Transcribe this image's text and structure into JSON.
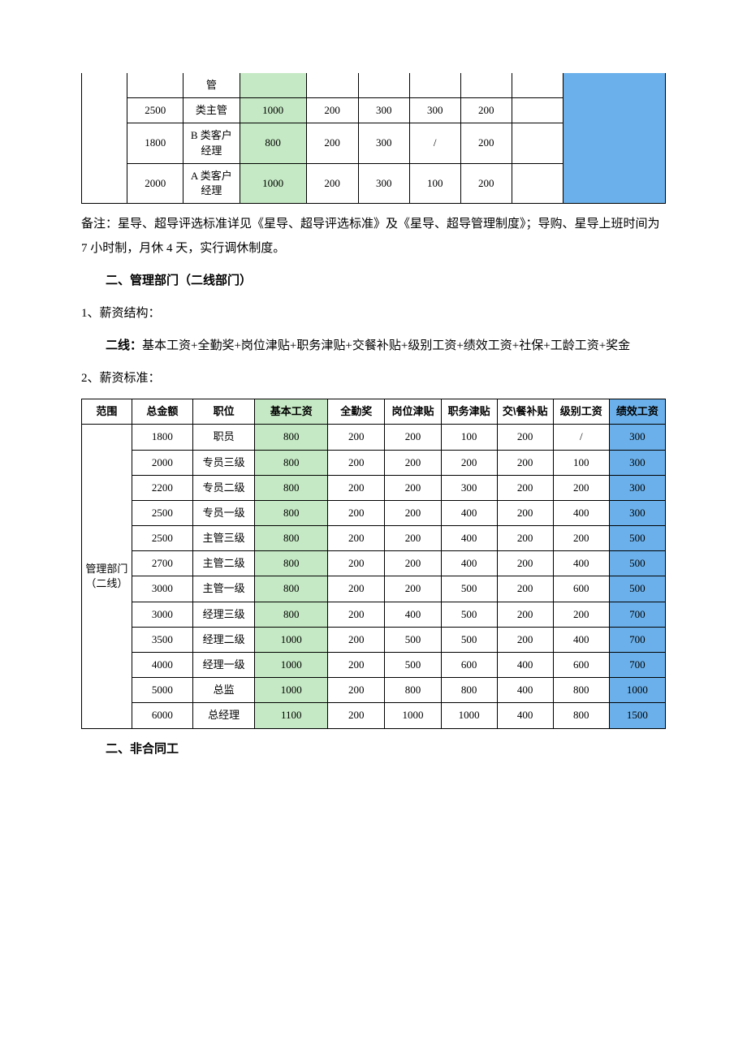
{
  "colors": {
    "green": "#c5e9c4",
    "blue": "#6bb0ea",
    "border": "#000000",
    "bg": "#ffffff"
  },
  "table1": {
    "rows": [
      {
        "amount": "",
        "position": "管",
        "base": "",
        "attendance": "",
        "allowance": "",
        "duty": "",
        "meal": ""
      },
      {
        "amount": "2500",
        "position": "类主管",
        "base": "1000",
        "attendance": "200",
        "allowance": "300",
        "duty": "300",
        "meal": "200"
      },
      {
        "amount": "1800",
        "position": "B 类客户经理",
        "base": "800",
        "attendance": "200",
        "allowance": "300",
        "duty": "/",
        "meal": "200"
      },
      {
        "amount": "2000",
        "position": "A 类客户经理",
        "base": "1000",
        "attendance": "200",
        "allowance": "300",
        "duty": "100",
        "meal": "200"
      }
    ]
  },
  "note": "备注：星导、超导评选标准详见《星导、超导评选标准》及《星导、超导管理制度》；导购、星导上班时间为 7 小时制，月休 4 天，实行调休制度。",
  "section2": {
    "title": "二、管理部门（二线部门）",
    "item1": "1、薪资结构：",
    "formula_label": "二线：",
    "formula": "基本工资+全勤奖+岗位津贴+职务津贴+交餐补贴+级别工资+绩效工资+社保+工龄工资+奖金",
    "item2": "2、薪资标准："
  },
  "table2": {
    "headers": {
      "scope": "范围",
      "amount": "总金额",
      "position": "职位",
      "base": "基本工资",
      "attendance": "全勤奖",
      "allowance": "岗位津贴",
      "duty": "职务津贴",
      "meal": "交\\餐补贴",
      "level": "级别工资",
      "perf": "绩效工资"
    },
    "scope_label": "管理部门（二线）",
    "rows": [
      {
        "amount": "1800",
        "position": "职员",
        "base": "800",
        "attendance": "200",
        "allowance": "200",
        "duty": "100",
        "meal": "200",
        "level": "/",
        "perf": "300"
      },
      {
        "amount": "2000",
        "position": "专员三级",
        "base": "800",
        "attendance": "200",
        "allowance": "200",
        "duty": "200",
        "meal": "200",
        "level": "100",
        "perf": "300"
      },
      {
        "amount": "2200",
        "position": "专员二级",
        "base": "800",
        "attendance": "200",
        "allowance": "200",
        "duty": "300",
        "meal": "200",
        "level": "200",
        "perf": "300"
      },
      {
        "amount": "2500",
        "position": "专员一级",
        "base": "800",
        "attendance": "200",
        "allowance": "200",
        "duty": "400",
        "meal": "200",
        "level": "400",
        "perf": "300"
      },
      {
        "amount": "2500",
        "position": "主管三级",
        "base": "800",
        "attendance": "200",
        "allowance": "200",
        "duty": "400",
        "meal": "200",
        "level": "200",
        "perf": "500"
      },
      {
        "amount": "2700",
        "position": "主管二级",
        "base": "800",
        "attendance": "200",
        "allowance": "200",
        "duty": "400",
        "meal": "200",
        "level": "400",
        "perf": "500"
      },
      {
        "amount": "3000",
        "position": "主管一级",
        "base": "800",
        "attendance": "200",
        "allowance": "200",
        "duty": "500",
        "meal": "200",
        "level": "600",
        "perf": "500"
      },
      {
        "amount": "3000",
        "position": "经理三级",
        "base": "800",
        "attendance": "200",
        "allowance": "400",
        "duty": "500",
        "meal": "200",
        "level": "200",
        "perf": "700"
      },
      {
        "amount": "3500",
        "position": "经理二级",
        "base": "1000",
        "attendance": "200",
        "allowance": "500",
        "duty": "500",
        "meal": "200",
        "level": "400",
        "perf": "700"
      },
      {
        "amount": "4000",
        "position": "经理一级",
        "base": "1000",
        "attendance": "200",
        "allowance": "500",
        "duty": "600",
        "meal": "400",
        "level": "600",
        "perf": "700"
      },
      {
        "amount": "5000",
        "position": "总监",
        "base": "1000",
        "attendance": "200",
        "allowance": "800",
        "duty": "800",
        "meal": "400",
        "level": "800",
        "perf": "1000"
      },
      {
        "amount": "6000",
        "position": "总经理",
        "base": "1100",
        "attendance": "200",
        "allowance": "1000",
        "duty": "1000",
        "meal": "400",
        "level": "800",
        "perf": "1500"
      }
    ]
  },
  "section3_title": "二、非合同工"
}
